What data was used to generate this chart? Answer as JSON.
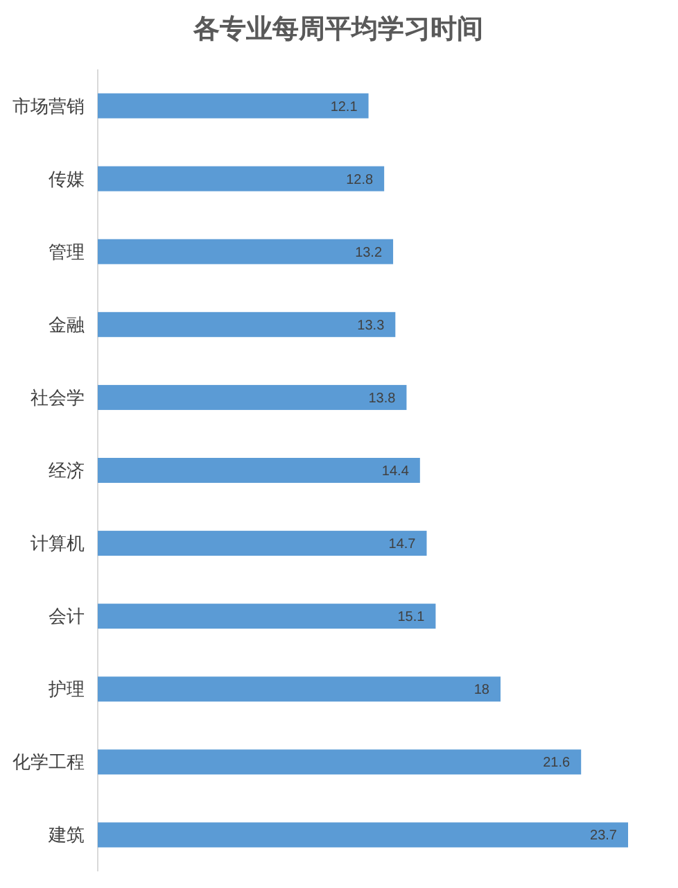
{
  "chart_data": {
    "type": "bar",
    "orientation": "horizontal",
    "title": "各专业每周平均学习时间",
    "categories": [
      "市场营销",
      "传媒",
      "管理",
      "金融",
      "社会学",
      "经济",
      "计算机",
      "会计",
      "护理",
      "化学工程",
      "建筑"
    ],
    "values": [
      12.1,
      12.8,
      13.2,
      13.3,
      13.8,
      14.4,
      14.7,
      15.1,
      18,
      21.6,
      23.7
    ],
    "color": "#5b9bd5",
    "data_labels": true
  }
}
